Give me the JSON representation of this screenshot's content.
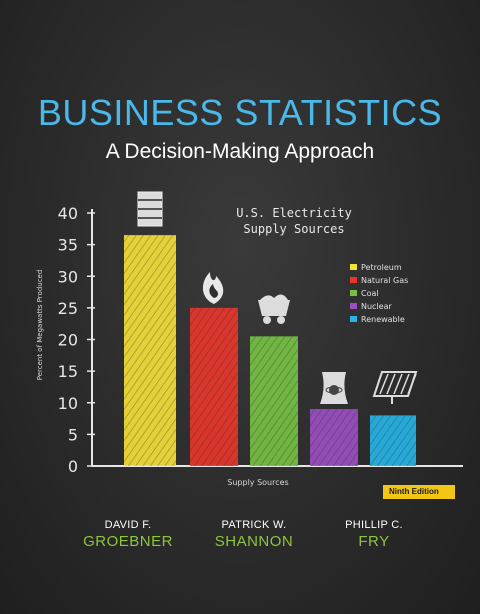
{
  "book": {
    "title": "BUSINESS STATISTICS",
    "subtitle": "A Decision-Making Approach",
    "edition": "Ninth Edition",
    "authors": [
      {
        "first": "DAVID F.",
        "last": "GROEBNER"
      },
      {
        "first": "PATRICK W.",
        "last": "SHANNON"
      },
      {
        "first": "PHILLIP C.",
        "last": "FRY"
      }
    ]
  },
  "colors": {
    "title": "#4ab8e8",
    "author_last": "#8dc63f",
    "edition_bg": "#f2c713"
  },
  "chart_data": {
    "type": "bar",
    "title": "U.S. Electricity Supply Sources",
    "title_lines": [
      "U.S. Electricity",
      "Supply Sources"
    ],
    "xlabel": "Supply Sources",
    "ylabel": "Percent of Megawatts Produced",
    "ylim": [
      0,
      40
    ],
    "yticks": [
      "0",
      "5",
      "10",
      "15",
      "20",
      "25",
      "30",
      "35",
      "40"
    ],
    "categories": [
      "Petroleum",
      "Natural Gas",
      "Coal",
      "Nuclear",
      "Renewable"
    ],
    "values": [
      36.5,
      25,
      20.5,
      9,
      8
    ],
    "colors": [
      "#f4e03a",
      "#e8362d",
      "#76c043",
      "#9b4fc2",
      "#27b4e6"
    ],
    "icons": [
      "oil-barrel-icon",
      "flame-icon",
      "coal-cart-icon",
      "nuclear-plant-icon",
      "solar-panel-icon"
    ],
    "legend_position": "right"
  }
}
